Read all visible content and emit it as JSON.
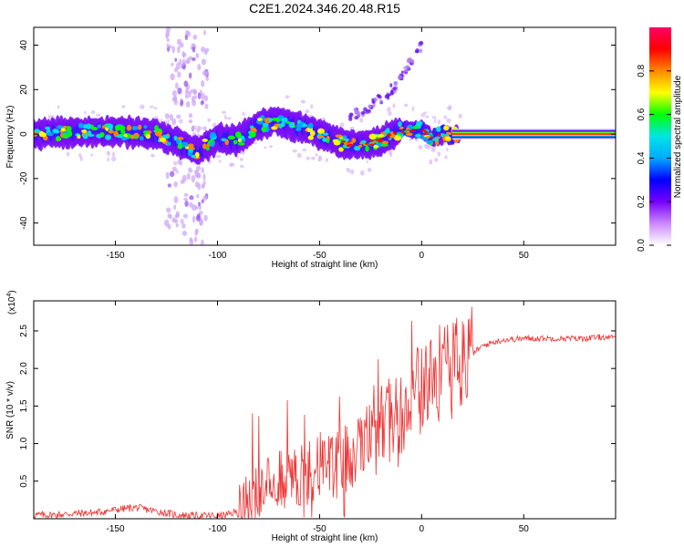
{
  "figure": {
    "title": "C2E1.2024.346.20.48.R15"
  },
  "chart_data": [
    {
      "type": "heatmap",
      "xlabel": "Height of straight line (km)",
      "ylabel": "Frequency (Hz)",
      "xlim": [
        -190,
        95
      ],
      "ylim": [
        -50,
        48
      ],
      "xticks": [
        -150,
        -100,
        -50,
        0,
        50
      ],
      "yticks": [
        -40,
        -20,
        0,
        20,
        40
      ],
      "colorbar": {
        "label": "Normalized spectral amplitude",
        "range": [
          0,
          1
        ],
        "ticks": [
          0.0,
          0.2,
          0.4,
          0.6,
          0.8
        ],
        "tick_labels": [
          "0.0",
          "0.2",
          "0.4",
          "0.6",
          "0.8"
        ],
        "colormap": [
          "#ffffff",
          "#cc88ff",
          "#7700ff",
          "#0000ff",
          "#00aaff",
          "#00e5e5",
          "#00ff00",
          "#ffff00",
          "#ff8800",
          "#ff0000",
          "#ff0066"
        ]
      },
      "ridge_frequency": {
        "x": [
          -190,
          -170,
          -150,
          -130,
          -110,
          -100,
          -90,
          -80,
          -70,
          -60,
          -50,
          -40,
          -30,
          -20,
          -10,
          0,
          5,
          10,
          15,
          20,
          40,
          60,
          80,
          95
        ],
        "y": [
          0,
          1,
          1,
          0,
          -8,
          -2,
          -3,
          4,
          6,
          3,
          0,
          -4,
          -5,
          -3,
          2,
          2,
          -2,
          0,
          0,
          0,
          0,
          0,
          0,
          0
        ]
      },
      "scatter_upper_branch": {
        "x": [
          -35,
          -28,
          -20,
          -12,
          -5,
          0
        ],
        "y": [
          8,
          11,
          16,
          22,
          33,
          40
        ]
      },
      "scatter_vertical_band": {
        "x_range": [
          -125,
          -105
        ],
        "y_range": [
          -50,
          48
        ]
      }
    },
    {
      "type": "line",
      "xlabel": "Height of straight line (km)",
      "ylabel": "SNR (10 * v/v)",
      "scale_label": "(x10",
      "scale_exponent": "4",
      "xlim": [
        -190,
        95
      ],
      "ylim": [
        0,
        2.9
      ],
      "xticks": [
        -150,
        -100,
        -50,
        0,
        50
      ],
      "yticks": [
        0.5,
        1.0,
        1.5,
        2.0,
        2.5
      ],
      "series": [
        {
          "color": "#ee3333",
          "x": [
            -190,
            -180,
            -170,
            -160,
            -150,
            -140,
            -130,
            -120,
            -110,
            -100,
            -95,
            -90,
            -85,
            -80,
            -75,
            -70,
            -65,
            -60,
            -55,
            -50,
            -45,
            -40,
            -35,
            -30,
            -25,
            -20,
            -15,
            -10,
            -5,
            0,
            5,
            10,
            15,
            20,
            25,
            30,
            35,
            40,
            50,
            60,
            70,
            80,
            90,
            95
          ],
          "y": [
            0.05,
            0.05,
            0.07,
            0.08,
            0.12,
            0.15,
            0.1,
            0.05,
            0.04,
            0.04,
            0.05,
            0.1,
            0.25,
            0.4,
            0.45,
            0.55,
            0.55,
            0.6,
            0.6,
            0.65,
            0.65,
            0.7,
            0.8,
            0.95,
            1.05,
            1.2,
            1.35,
            1.45,
            1.6,
            1.75,
            1.85,
            1.9,
            2.0,
            2.1,
            2.2,
            2.3,
            2.35,
            2.38,
            2.4,
            2.4,
            2.4,
            2.4,
            2.42,
            2.4
          ]
        }
      ]
    }
  ]
}
